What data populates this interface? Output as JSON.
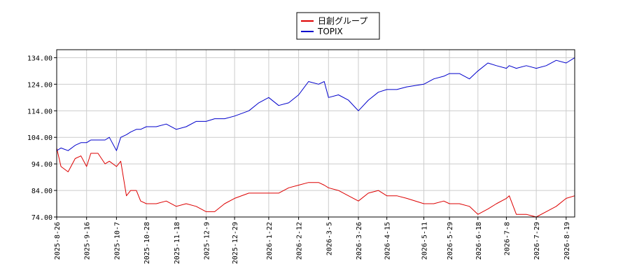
{
  "chart_data": {
    "type": "line",
    "title": "",
    "xlabel": "",
    "ylabel": "",
    "ylim": [
      74,
      137
    ],
    "yticks": [
      74.0,
      84.0,
      94.0,
      104.0,
      114.0,
      124.0,
      134.0
    ],
    "ytick_labels": [
      "74.00",
      "84.00",
      "94.00",
      "104.00",
      "114.00",
      "124.00",
      "134.00"
    ],
    "xtick_labels": [
      "2025-8-26",
      "2025-9-16",
      "2025-10-7",
      "2025-10-28",
      "2025-11-18",
      "2025-12-9",
      "2025-12-29",
      "2026-1-22",
      "2026-2-12",
      "2026-3-5",
      "2026-3-26",
      "2026-4-15",
      "2026-5-11",
      "2026-5-29",
      "2026-6-18",
      "2026-7-8",
      "2026-7-29",
      "2026-8-19"
    ],
    "grid": true,
    "legend": "top-center",
    "series": [
      {
        "name": "日創グループ",
        "color": "#dd0000",
        "x": [
          "2025-8-26",
          "2025-8-29",
          "2025-9-3",
          "2025-9-8",
          "2025-9-12",
          "2025-9-16",
          "2025-9-19",
          "2025-9-24",
          "2025-9-29",
          "2025-10-2",
          "2025-10-7",
          "2025-10-10",
          "2025-10-14",
          "2025-10-17",
          "2025-10-21",
          "2025-10-24",
          "2025-10-28",
          "2025-11-4",
          "2025-11-11",
          "2025-11-18",
          "2025-11-25",
          "2025-12-2",
          "2025-12-9",
          "2025-12-15",
          "2025-12-22",
          "2025-12-29",
          "2026-1-8",
          "2026-1-15",
          "2026-1-22",
          "2026-1-29",
          "2026-2-5",
          "2026-2-12",
          "2026-2-19",
          "2026-2-26",
          "2026-3-2",
          "2026-3-5",
          "2026-3-12",
          "2026-3-19",
          "2026-3-26",
          "2026-4-2",
          "2026-4-9",
          "2026-4-15",
          "2026-4-22",
          "2026-4-29",
          "2026-5-11",
          "2026-5-18",
          "2026-5-25",
          "2026-5-29",
          "2026-6-5",
          "2026-6-12",
          "2026-6-18",
          "2026-6-25",
          "2026-7-1",
          "2026-7-8",
          "2026-7-10",
          "2026-7-15",
          "2026-7-22",
          "2026-7-29",
          "2026-8-5",
          "2026-8-12",
          "2026-8-19",
          "2026-8-25"
        ],
        "values": [
          100,
          93,
          91,
          96,
          97,
          93,
          98,
          98,
          94,
          95,
          93,
          95,
          82,
          84,
          84,
          80,
          79,
          79,
          80,
          78,
          79,
          78,
          76,
          76,
          79,
          81,
          83,
          83,
          83,
          83,
          85,
          86,
          87,
          87,
          86,
          85,
          84,
          82,
          80,
          83,
          84,
          82,
          82,
          81,
          79,
          79,
          80,
          79,
          79,
          78,
          75,
          77,
          79,
          81,
          82,
          75,
          75,
          74,
          76,
          78,
          81,
          82
        ]
      },
      {
        "name": "TOPIX",
        "color": "#0000cc",
        "x": [
          "2025-8-26",
          "2025-8-29",
          "2025-9-3",
          "2025-9-8",
          "2025-9-12",
          "2025-9-16",
          "2025-9-19",
          "2025-9-24",
          "2025-9-29",
          "2025-10-2",
          "2025-10-7",
          "2025-10-10",
          "2025-10-14",
          "2025-10-17",
          "2025-10-21",
          "2025-10-24",
          "2025-10-28",
          "2025-11-4",
          "2025-11-11",
          "2025-11-18",
          "2025-11-25",
          "2025-12-2",
          "2025-12-9",
          "2025-12-15",
          "2025-12-22",
          "2025-12-29",
          "2026-1-8",
          "2026-1-15",
          "2026-1-22",
          "2026-1-29",
          "2026-2-5",
          "2026-2-12",
          "2026-2-19",
          "2026-2-26",
          "2026-3-2",
          "2026-3-5",
          "2026-3-12",
          "2026-3-19",
          "2026-3-26",
          "2026-4-2",
          "2026-4-9",
          "2026-4-15",
          "2026-4-22",
          "2026-4-29",
          "2026-5-11",
          "2026-5-18",
          "2026-5-25",
          "2026-5-29",
          "2026-6-5",
          "2026-6-12",
          "2026-6-18",
          "2026-6-25",
          "2026-7-1",
          "2026-7-8",
          "2026-7-10",
          "2026-7-15",
          "2026-7-22",
          "2026-7-29",
          "2026-8-5",
          "2026-8-12",
          "2026-8-19",
          "2026-8-25"
        ],
        "values": [
          99,
          100,
          99,
          101,
          102,
          102,
          103,
          103,
          103,
          104,
          99,
          104,
          105,
          106,
          107,
          107,
          108,
          108,
          109,
          107,
          108,
          110,
          110,
          111,
          111,
          112,
          114,
          117,
          119,
          116,
          117,
          120,
          125,
          124,
          125,
          119,
          120,
          118,
          114,
          118,
          121,
          122,
          122,
          123,
          124,
          126,
          127,
          128,
          128,
          126,
          129,
          132,
          131,
          130,
          131,
          130,
          131,
          130,
          131,
          133,
          132,
          134
        ]
      }
    ]
  }
}
